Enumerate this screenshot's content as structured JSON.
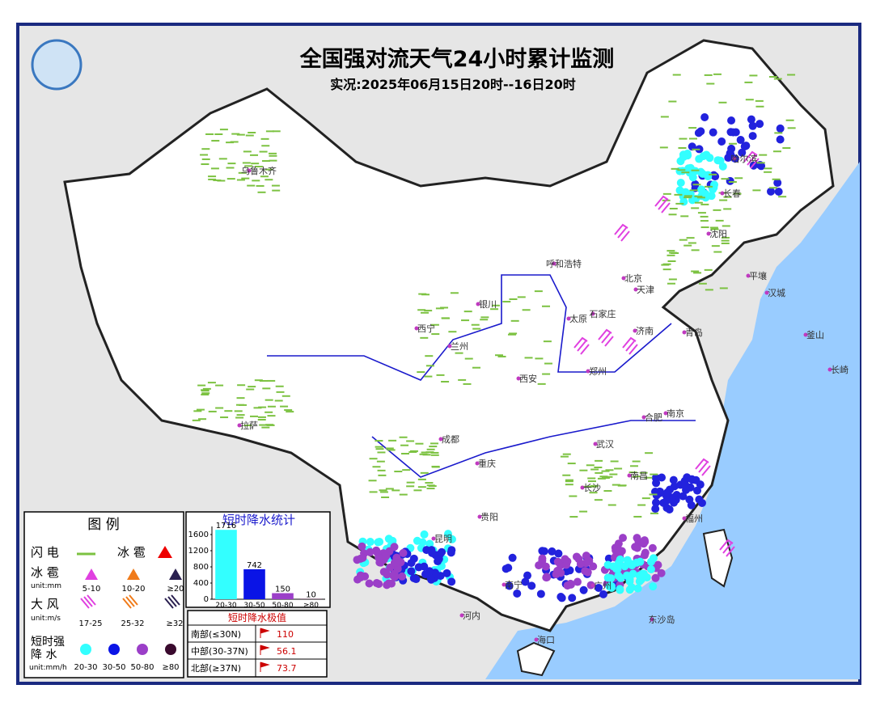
{
  "header": {
    "title": "全国强对流天气24小时累计监测",
    "subtitle": "实况:2025年06月15日20时--16日20时"
  },
  "cities": [
    "乌鲁木齐",
    "哈尔滨",
    "长春",
    "沈阳",
    "呼和浩特",
    "北京",
    "天津",
    "太原",
    "石家庄",
    "济南",
    "青岛",
    "银川",
    "西宁",
    "兰州",
    "西安",
    "郑州",
    "合肥",
    "南京",
    "成都",
    "重庆",
    "武汉",
    "南昌",
    "长沙",
    "贵阳",
    "昆明",
    "南宁",
    "广州",
    "福州",
    "海口",
    "拉萨",
    "平壤",
    "汉城",
    "釜山",
    "长崎",
    "河内",
    "东沙岛"
  ],
  "legend": {
    "title": "图 例",
    "lightning": "闪 电",
    "hail_label": "冰 雹",
    "hail": "冰 雹",
    "hail_unit": "unit:mm",
    "hail_classes": [
      "5-10",
      "10-20",
      "≥20"
    ],
    "wind": "大 风",
    "wind_unit": "unit:m/s",
    "wind_classes": [
      "17-25",
      "25-32",
      "≥32"
    ],
    "rain_line1": "短时强",
    "rain_line2": "降 水",
    "rain_unit": "unit:mm/h",
    "rain_classes": [
      "20-30",
      "30-50",
      "50-80",
      "≥80"
    ]
  },
  "chart_data": {
    "type": "bar",
    "title": "短时降水统计",
    "categories": [
      "20-30",
      "30-50",
      "50-80",
      "≥80"
    ],
    "values": [
      1716,
      742,
      150,
      10
    ],
    "colors": [
      "#33ffff",
      "#0a14e6",
      "#9b3fc8",
      "#3a0a2e"
    ],
    "ylim": [
      0,
      1800
    ],
    "yticks": [
      0,
      400,
      800,
      1200,
      1600
    ]
  },
  "extremes": {
    "title": "短时降水极值",
    "rows": [
      [
        "南部(≤30N)",
        "110"
      ],
      [
        "中部(30-37N)",
        "56.1"
      ],
      [
        "北部(≥37N)",
        "73.7"
      ]
    ]
  }
}
